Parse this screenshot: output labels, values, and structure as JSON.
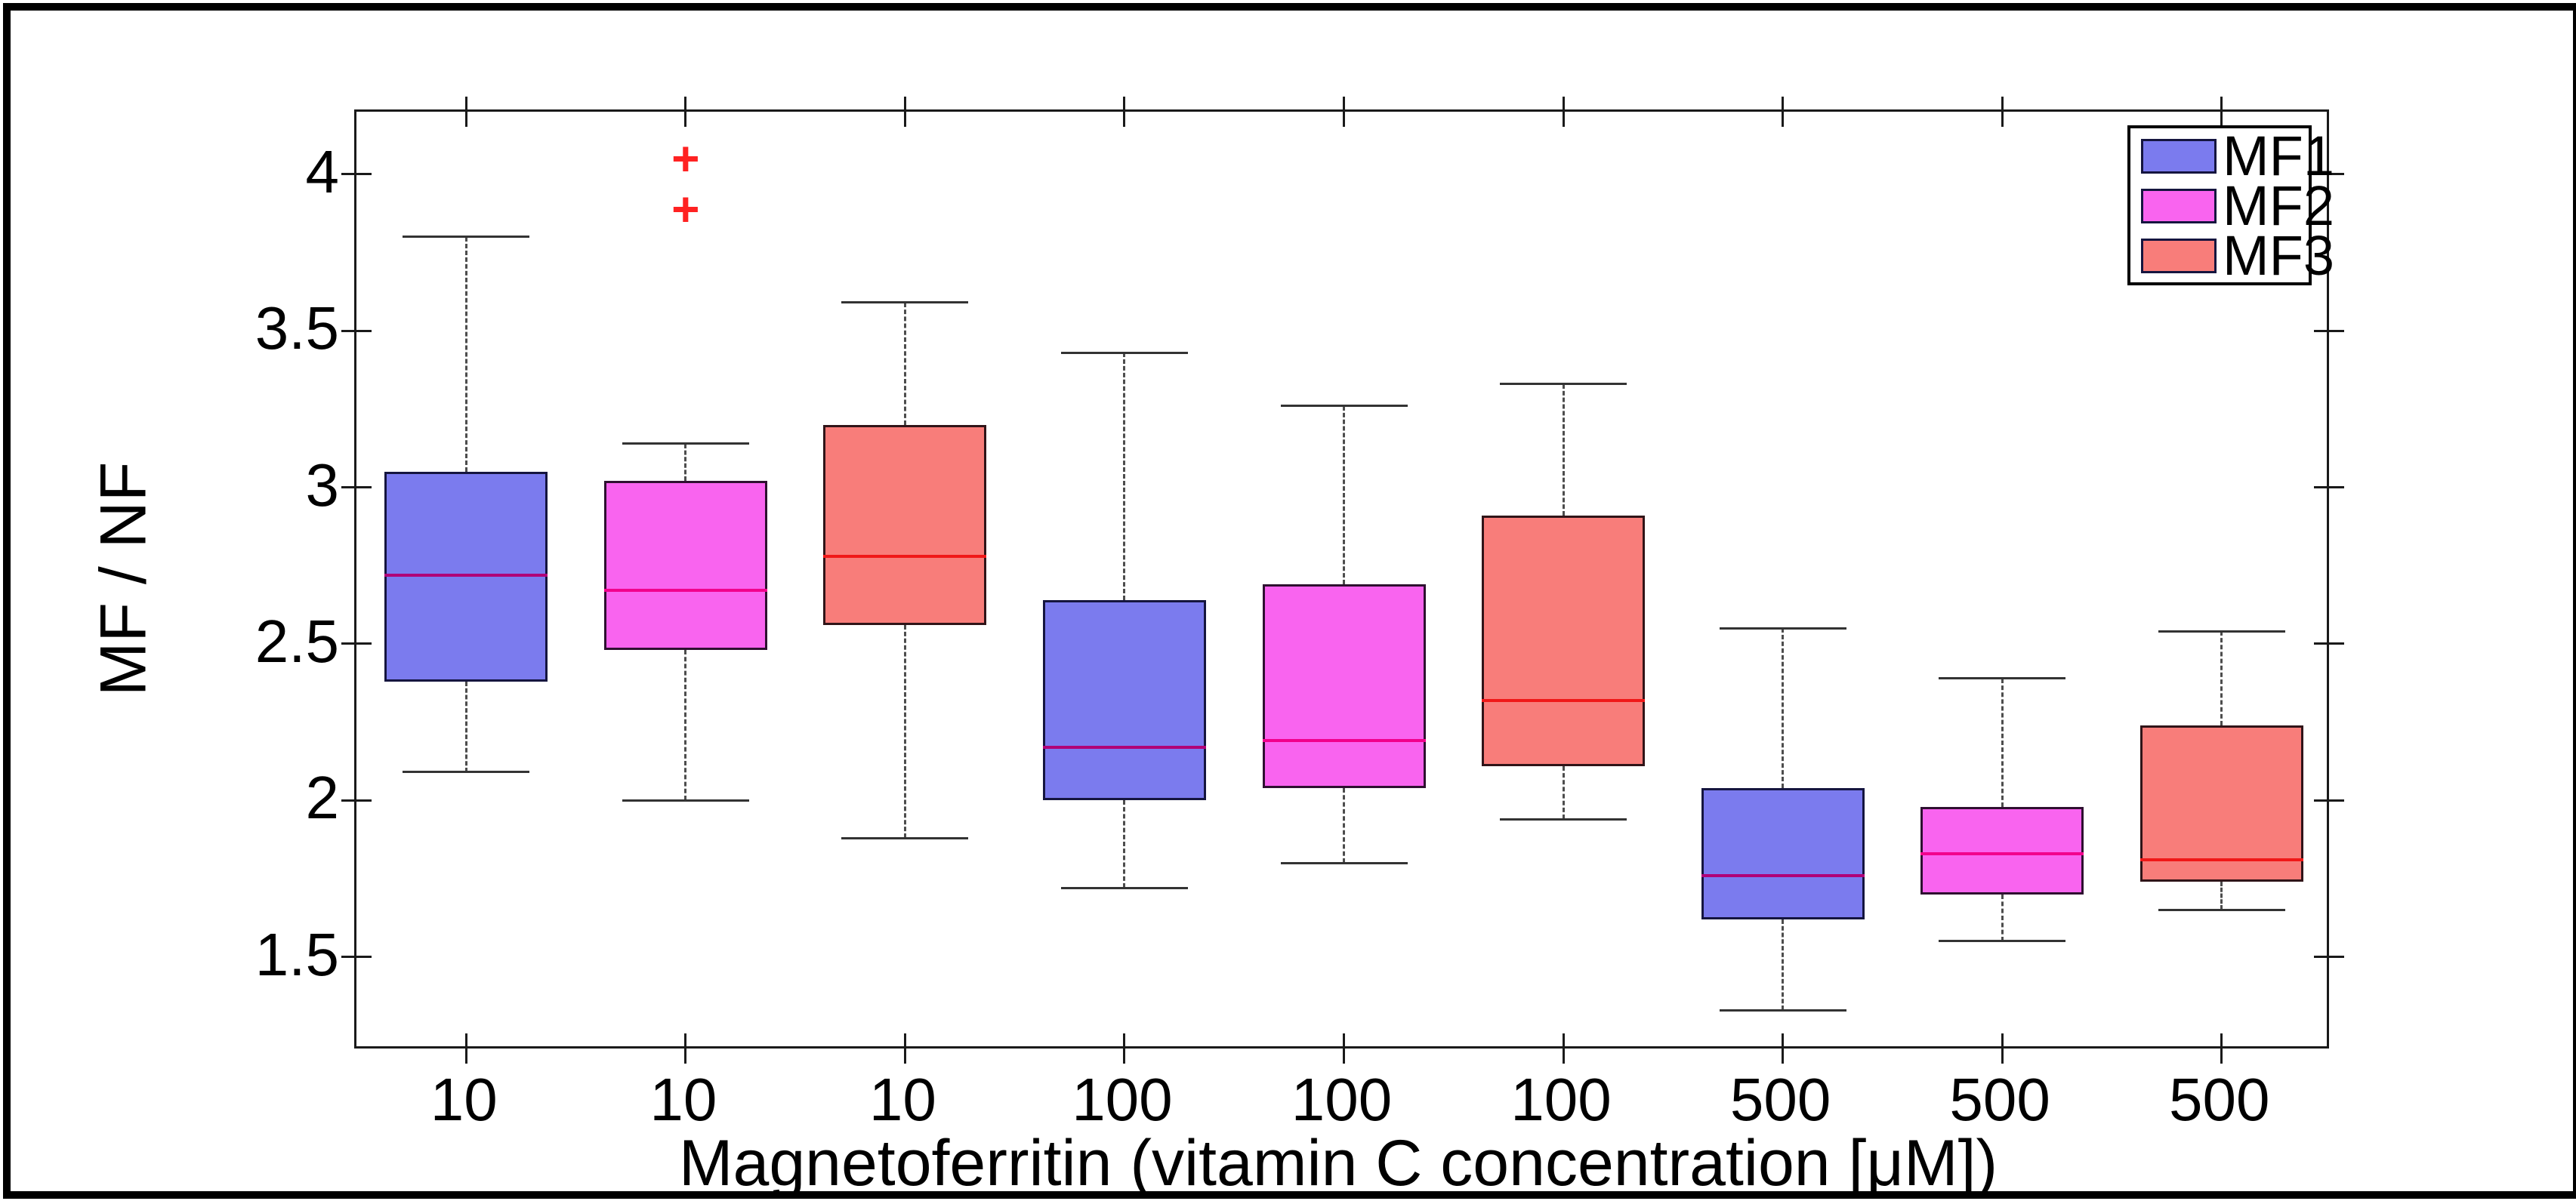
{
  "figure": {
    "background": "#ffffff",
    "frame_color": "#000000"
  },
  "chart_data": {
    "type": "boxplot",
    "title": "",
    "xlabel": "Magnetoferritin (vitamin C concentration [μM])",
    "ylabel": "MF / NF",
    "ylim": [
      1.2,
      4.2
    ],
    "yticks": [
      1.5,
      2,
      2.5,
      3,
      3.5,
      4
    ],
    "grid": false,
    "categories": [
      "10",
      "10",
      "10",
      "100",
      "100",
      "100",
      "500",
      "500",
      "500"
    ],
    "legend": {
      "position": "top-right",
      "entries": [
        {
          "label": "MF1",
          "color": "#7b7bee"
        },
        {
          "label": "MF2",
          "color": "#f964ef"
        },
        {
          "label": "MF3",
          "color": "#f87d7a"
        }
      ]
    },
    "boxes": [
      {
        "category": "10",
        "series": "MF1",
        "whisker_low": 2.09,
        "q1": 2.38,
        "median": 2.72,
        "q3": 3.05,
        "whisker_high": 3.8,
        "outliers": []
      },
      {
        "category": "10",
        "series": "MF2",
        "whisker_low": 2.0,
        "q1": 2.48,
        "median": 2.67,
        "q3": 3.02,
        "whisker_high": 3.14,
        "outliers": [
          3.89,
          4.05
        ]
      },
      {
        "category": "10",
        "series": "MF3",
        "whisker_low": 1.88,
        "q1": 2.56,
        "median": 2.78,
        "q3": 3.2,
        "whisker_high": 3.59,
        "outliers": []
      },
      {
        "category": "100",
        "series": "MF1",
        "whisker_low": 1.72,
        "q1": 2.0,
        "median": 2.17,
        "q3": 2.64,
        "whisker_high": 3.43,
        "outliers": []
      },
      {
        "category": "100",
        "series": "MF2",
        "whisker_low": 1.8,
        "q1": 2.04,
        "median": 2.19,
        "q3": 2.69,
        "whisker_high": 3.26,
        "outliers": []
      },
      {
        "category": "100",
        "series": "MF3",
        "whisker_low": 1.94,
        "q1": 2.11,
        "median": 2.32,
        "q3": 2.91,
        "whisker_high": 3.33,
        "outliers": []
      },
      {
        "category": "500",
        "series": "MF1",
        "whisker_low": 1.33,
        "q1": 1.62,
        "median": 1.76,
        "q3": 2.04,
        "whisker_high": 2.55,
        "outliers": []
      },
      {
        "category": "500",
        "series": "MF2",
        "whisker_low": 1.55,
        "q1": 1.7,
        "median": 1.83,
        "q3": 1.98,
        "whisker_high": 2.39,
        "outliers": []
      },
      {
        "category": "500",
        "series": "MF3",
        "whisker_low": 1.65,
        "q1": 1.74,
        "median": 1.81,
        "q3": 2.24,
        "whisker_high": 2.54,
        "outliers": []
      }
    ],
    "series_styles": {
      "MF1": {
        "fill": "#7b7bee",
        "edge": "#15153f",
        "median_color": "#b00077"
      },
      "MF2": {
        "fill": "#f964ef",
        "edge": "#2e1030",
        "median_color": "#f2008c"
      },
      "MF3": {
        "fill": "#f87d7a",
        "edge": "#301418",
        "median_color": "#f01818"
      }
    },
    "outlier_marker": "+",
    "outlier_color": "#ff2222",
    "whisker_style": "dashed"
  }
}
